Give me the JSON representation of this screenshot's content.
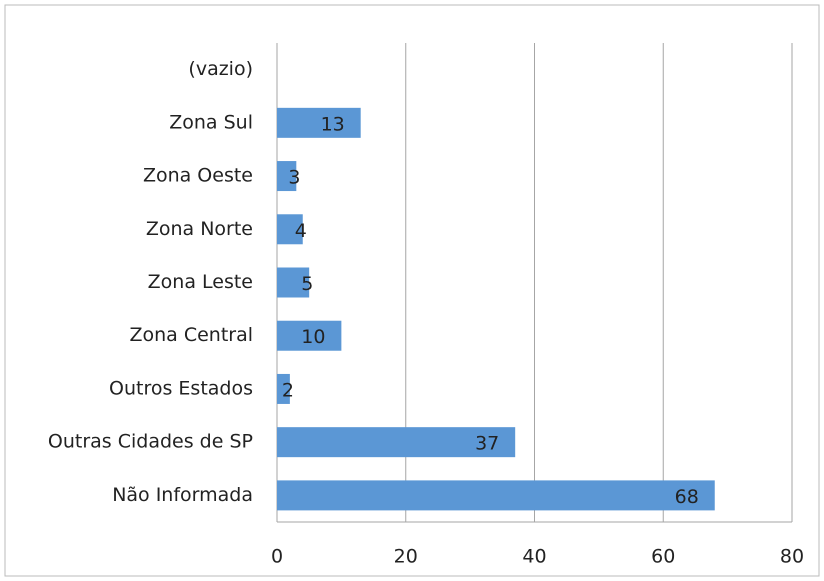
{
  "chart_data": {
    "type": "bar",
    "orientation": "horizontal",
    "categories": [
      "(vazio)",
      "Zona Sul",
      "Zona Oeste",
      "Zona Norte",
      "Zona Leste",
      "Zona Central",
      "Outros Estados",
      "Outras Cidades de SP",
      "Não Informada"
    ],
    "values": [
      null,
      13,
      3,
      4,
      5,
      10,
      2,
      37,
      68
    ],
    "color": "#5b97d5",
    "xlim": [
      0,
      80
    ],
    "xticks": [
      0,
      20,
      40,
      60,
      80
    ],
    "grid": true
  }
}
